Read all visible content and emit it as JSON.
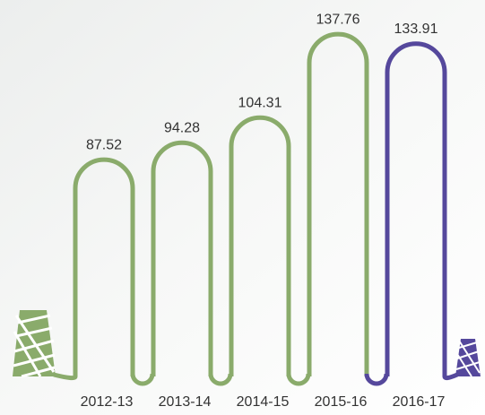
{
  "chart_data": {
    "type": "bar",
    "categories": [
      "2012-13",
      "2013-14",
      "2014-15",
      "2015-16",
      "2016-17"
    ],
    "values": [
      87.52,
      94.28,
      104.31,
      137.76,
      133.91
    ],
    "colors": [
      "#8aab6b",
      "#8aab6b",
      "#8aab6b",
      "#8aab6b",
      "#55489c"
    ]
  }
}
